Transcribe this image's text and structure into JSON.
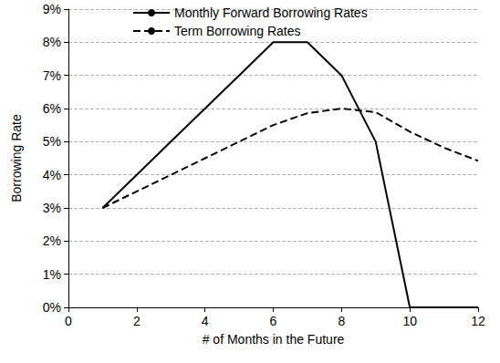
{
  "chart_data": {
    "type": "line",
    "x_label": "# of Months in the Future",
    "y_label": "Borrowing Rate",
    "x": [
      1,
      2,
      3,
      4,
      5,
      6,
      7,
      8,
      9,
      10,
      11,
      12
    ],
    "series": [
      {
        "name": "Monthly Forward Borrowing Rates",
        "color": "#000000",
        "line_style": "solid",
        "values": [
          3,
          4,
          5,
          6,
          7,
          8,
          8,
          7,
          5,
          0,
          0,
          0
        ]
      },
      {
        "name": "Term Borrowing Rates",
        "color": "#000000",
        "line_style": "dashed",
        "values": [
          3,
          3.5,
          4,
          4.5,
          5,
          5.5,
          5.86,
          6,
          5.89,
          5.3,
          4.82,
          4.42
        ]
      }
    ],
    "xlim": [
      0,
      12
    ],
    "xticks": [
      0,
      2,
      4,
      6,
      8,
      10,
      12
    ],
    "ylim": [
      0,
      9
    ],
    "yticks": [
      {
        "value": 0,
        "label": "0%"
      },
      {
        "value": 1,
        "label": "1%"
      },
      {
        "value": 2,
        "label": "2%"
      },
      {
        "value": 3,
        "label": "3%"
      },
      {
        "value": 4,
        "label": "4%"
      },
      {
        "value": 5,
        "label": "5%"
      },
      {
        "value": 6,
        "label": "6%"
      },
      {
        "value": 7,
        "label": "7%"
      },
      {
        "value": 8,
        "label": "8%"
      },
      {
        "value": 9,
        "label": "9%"
      }
    ],
    "grid": true,
    "legend": "top"
  }
}
